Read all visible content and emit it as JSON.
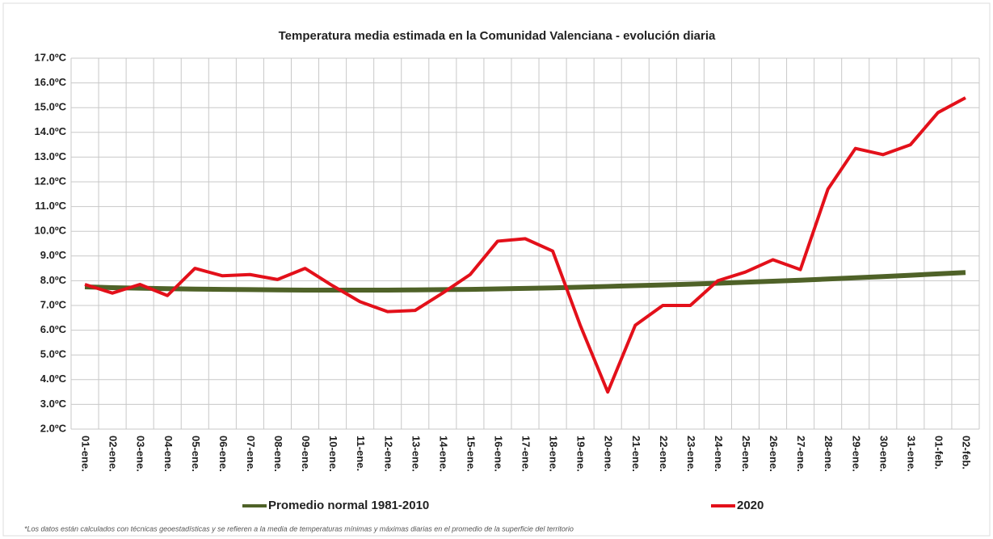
{
  "chart_data": {
    "type": "line",
    "title": "Temperatura media estimada en la Comunidad Valenciana - evolución diaria",
    "note": "*Los datos están calculados con técnicas geoestadísticas y se refieren a la media de temperaturas mínimas y máximas diarias en el promedio de la superficie del territorio",
    "categories": [
      "01-ene.",
      "02-ene.",
      "03-ene.",
      "04-ene.",
      "05-ene.",
      "06-ene.",
      "07-ene.",
      "08-ene.",
      "09-ene.",
      "10-ene.",
      "11-ene.",
      "12-ene.",
      "13-ene.",
      "14-ene.",
      "15-ene.",
      "16-ene.",
      "17-ene.",
      "18-ene.",
      "19-ene.",
      "20-ene.",
      "21-ene.",
      "22-ene.",
      "23-ene.",
      "24-ene.",
      "25-ene.",
      "26-ene.",
      "27-ene.",
      "28-ene.",
      "29-ene.",
      "30-ene.",
      "31-ene.",
      "01-feb.",
      "02-feb."
    ],
    "series": [
      {
        "name": "Promedio normal 1981-2010",
        "color": "#4f6228",
        "values": [
          7.75,
          7.72,
          7.7,
          7.68,
          7.66,
          7.65,
          7.64,
          7.63,
          7.62,
          7.62,
          7.62,
          7.62,
          7.63,
          7.64,
          7.65,
          7.67,
          7.69,
          7.71,
          7.74,
          7.77,
          7.8,
          7.83,
          7.86,
          7.9,
          7.94,
          7.98,
          8.02,
          8.07,
          8.12,
          8.17,
          8.22,
          8.28,
          8.33
        ]
      },
      {
        "name": "2020",
        "color": "#e3101a",
        "values": [
          7.85,
          7.5,
          7.85,
          7.4,
          8.5,
          8.2,
          8.25,
          8.05,
          8.5,
          7.8,
          7.15,
          6.75,
          6.8,
          7.5,
          8.25,
          9.6,
          9.7,
          9.2,
          6.2,
          3.5,
          6.2,
          7.0,
          7.0,
          8.0,
          8.35,
          8.85,
          8.45,
          11.7,
          13.35,
          13.1,
          13.5,
          14.8,
          15.4
        ]
      }
    ],
    "ylim": [
      2,
      17
    ],
    "yticks": [
      {
        "value": 2,
        "label": "2.0ºC"
      },
      {
        "value": 3,
        "label": "3.0ºC"
      },
      {
        "value": 4,
        "label": "4.0ºC"
      },
      {
        "value": 5,
        "label": "5.0ºC"
      },
      {
        "value": 6,
        "label": "6.0ºC"
      },
      {
        "value": 7,
        "label": "7.0ºC"
      },
      {
        "value": 8,
        "label": "8.0ºC"
      },
      {
        "value": 9,
        "label": "9.0ºC"
      },
      {
        "value": 10,
        "label": "10.0ºC"
      },
      {
        "value": 11,
        "label": "11.0ºC"
      },
      {
        "value": 12,
        "label": "12.0ºC"
      },
      {
        "value": 13,
        "label": "13.0ºC"
      },
      {
        "value": 14,
        "label": "14.0ºC"
      },
      {
        "value": 15,
        "label": "15.0ºC"
      },
      {
        "value": 16,
        "label": "16.0ºC"
      },
      {
        "value": 17,
        "label": "17.0ºC"
      }
    ],
    "grid": true,
    "legend": "bottom"
  }
}
